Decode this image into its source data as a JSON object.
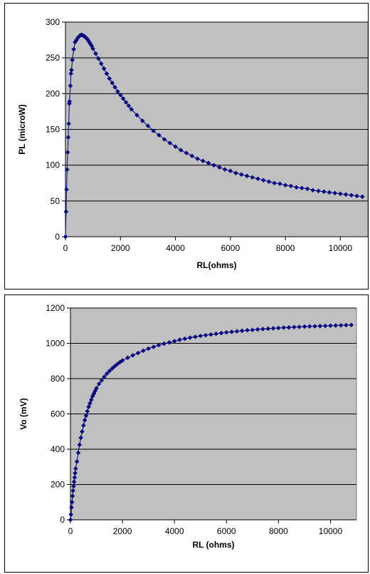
{
  "chart_data": [
    {
      "type": "scatter",
      "title": "",
      "xlabel": "RL(ohms)",
      "ylabel": "PL (microW)",
      "xlim": [
        0,
        11000
      ],
      "ylim": [
        0,
        300
      ],
      "xticks": [
        0,
        2000,
        4000,
        6000,
        8000,
        10000
      ],
      "yticks": [
        0,
        50,
        100,
        150,
        200,
        250,
        300
      ],
      "grid": "horizontal",
      "legend": "none",
      "plot_background": "#c0c0c0",
      "series_color": "#000080",
      "series": [
        {
          "values": [
            [
              0,
              0
            ],
            [
              20,
              35
            ],
            [
              40,
              66
            ],
            [
              60,
              94
            ],
            [
              80,
              118
            ],
            [
              100,
              139
            ],
            [
              120,
              158
            ],
            [
              140,
              186
            ],
            [
              150,
              189
            ],
            [
              180,
              211
            ],
            [
              200,
              228
            ],
            [
              220,
              233
            ],
            [
              250,
              247
            ],
            [
              300,
              262
            ],
            [
              350,
              272
            ],
            [
              400,
              275
            ],
            [
              450,
              278
            ],
            [
              500,
              280
            ],
            [
              550,
              282
            ],
            [
              600,
              282
            ],
            [
              650,
              281
            ],
            [
              700,
              280
            ],
            [
              750,
              278
            ],
            [
              800,
              276
            ],
            [
              850,
              273
            ],
            [
              900,
              270
            ],
            [
              950,
              267
            ],
            [
              1000,
              263
            ],
            [
              1100,
              256
            ],
            [
              1200,
              249
            ],
            [
              1300,
              242
            ],
            [
              1400,
              235
            ],
            [
              1500,
              228
            ],
            [
              1600,
              221
            ],
            [
              1700,
              215
            ],
            [
              1800,
              209
            ],
            [
              1900,
              203
            ],
            [
              2000,
              198
            ],
            [
              2100,
              193
            ],
            [
              2200,
              188
            ],
            [
              2300,
              183
            ],
            [
              2400,
              178
            ],
            [
              2600,
              170
            ],
            [
              2800,
              162
            ],
            [
              3000,
              155
            ],
            [
              3200,
              148
            ],
            [
              3400,
              142
            ],
            [
              3600,
              136
            ],
            [
              3800,
              131
            ],
            [
              4000,
              126
            ],
            [
              4200,
              121
            ],
            [
              4400,
              117
            ],
            [
              4600,
              113
            ],
            [
              4800,
              109
            ],
            [
              5000,
              106
            ],
            [
              5200,
              103
            ],
            [
              5400,
              100
            ],
            [
              5600,
              97
            ],
            [
              5800,
              94
            ],
            [
              6000,
              92
            ],
            [
              6200,
              89
            ],
            [
              6400,
              87
            ],
            [
              6600,
              85
            ],
            [
              6800,
              83
            ],
            [
              7000,
              81
            ],
            [
              7200,
              79
            ],
            [
              7400,
              77
            ],
            [
              7600,
              75
            ],
            [
              7800,
              74
            ],
            [
              8000,
              72
            ],
            [
              8200,
              71
            ],
            [
              8400,
              69
            ],
            [
              8600,
              68
            ],
            [
              8800,
              67
            ],
            [
              9000,
              65
            ],
            [
              9200,
              64
            ],
            [
              9400,
              63
            ],
            [
              9600,
              62
            ],
            [
              9800,
              61
            ],
            [
              10000,
              60
            ],
            [
              10200,
              59
            ],
            [
              10400,
              58
            ],
            [
              10600,
              57
            ],
            [
              10800,
              56
            ]
          ]
        }
      ]
    },
    {
      "type": "scatter",
      "title": "",
      "xlabel": "RL (ohms)",
      "ylabel": "Vo (mV)",
      "xlim": [
        0,
        11000
      ],
      "ylim": [
        0,
        1200
      ],
      "xticks": [
        0,
        2000,
        4000,
        6000,
        8000,
        10000
      ],
      "yticks": [
        0,
        200,
        400,
        600,
        800,
        1000,
        1200
      ],
      "grid": "horizontal",
      "legend": "none",
      "plot_background": "#c0c0c0",
      "series_color": "#000080",
      "series": [
        {
          "values": [
            [
              0,
              0
            ],
            [
              20,
              30
            ],
            [
              40,
              70
            ],
            [
              60,
              100
            ],
            [
              80,
              135
            ],
            [
              100,
              165
            ],
            [
              120,
              190
            ],
            [
              140,
              215
            ],
            [
              160,
              240
            ],
            [
              180,
              265
            ],
            [
              200,
              290
            ],
            [
              250,
              330
            ],
            [
              300,
              380
            ],
            [
              350,
              425
            ],
            [
              400,
              465
            ],
            [
              450,
              500
            ],
            [
              500,
              535
            ],
            [
              550,
              565
            ],
            [
              600,
              590
            ],
            [
              650,
              615
            ],
            [
              700,
              640
            ],
            [
              750,
              660
            ],
            [
              800,
              680
            ],
            [
              850,
              700
            ],
            [
              900,
              715
            ],
            [
              950,
              730
            ],
            [
              1000,
              745
            ],
            [
              1100,
              770
            ],
            [
              1200,
              790
            ],
            [
              1300,
              810
            ],
            [
              1400,
              828
            ],
            [
              1500,
              843
            ],
            [
              1600,
              857
            ],
            [
              1700,
              870
            ],
            [
              1800,
              882
            ],
            [
              1900,
              893
            ],
            [
              2000,
              903
            ],
            [
              2200,
              918
            ],
            [
              2400,
              932
            ],
            [
              2600,
              945
            ],
            [
              2800,
              958
            ],
            [
              3000,
              970
            ],
            [
              3200,
              980
            ],
            [
              3400,
              990
            ],
            [
              3600,
              998
            ],
            [
              3800,
              1005
            ],
            [
              4000,
              1012
            ],
            [
              4200,
              1020
            ],
            [
              4400,
              1026
            ],
            [
              4600,
              1032
            ],
            [
              4800,
              1037
            ],
            [
              5000,
              1042
            ],
            [
              5200,
              1046
            ],
            [
              5400,
              1050
            ],
            [
              5600,
              1054
            ],
            [
              5800,
              1058
            ],
            [
              6000,
              1062
            ],
            [
              6200,
              1065
            ],
            [
              6400,
              1068
            ],
            [
              6600,
              1071
            ],
            [
              6800,
              1074
            ],
            [
              7000,
              1076
            ],
            [
              7200,
              1079
            ],
            [
              7400,
              1081
            ],
            [
              7600,
              1083
            ],
            [
              7800,
              1085
            ],
            [
              8000,
              1087
            ],
            [
              8200,
              1089
            ],
            [
              8400,
              1090
            ],
            [
              8600,
              1092
            ],
            [
              8800,
              1093
            ],
            [
              9000,
              1095
            ],
            [
              9200,
              1096
            ],
            [
              9400,
              1097
            ],
            [
              9600,
              1098
            ],
            [
              9800,
              1099
            ],
            [
              10000,
              1100
            ],
            [
              10200,
              1101
            ],
            [
              10400,
              1102
            ],
            [
              10600,
              1103
            ],
            [
              10800,
              1104
            ]
          ]
        }
      ]
    }
  ]
}
